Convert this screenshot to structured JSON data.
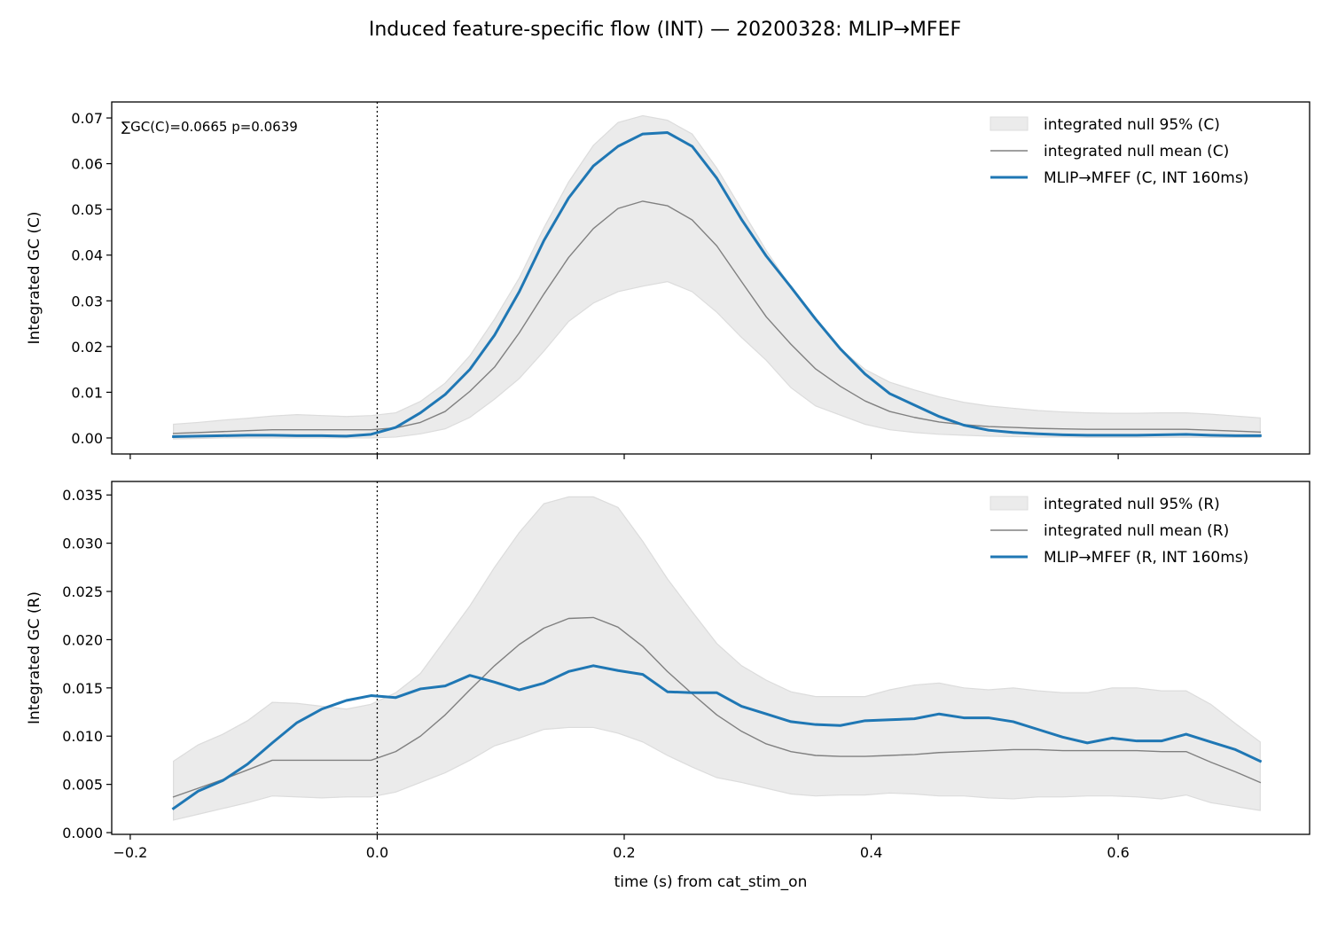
{
  "figure_title": "Induced feature-specific flow (INT) — 20200328: MLIP→MFEF",
  "colors": {
    "series": "#1f77b4",
    "null_mean": "#808080",
    "null_band": "#ebebeb",
    "null_band_edge": "#dcdcdc"
  },
  "chart_data": [
    {
      "type": "line",
      "id": "C",
      "ylabel": "Integrated GC (C)",
      "xlabel": "",
      "annotation": "∑GC(C)=0.0665  p=0.0639",
      "xlim": [
        -0.215,
        0.755
      ],
      "ylim": [
        -0.0035,
        0.0735
      ],
      "xticks": [
        -0.2,
        0.0,
        0.2,
        0.4,
        0.6
      ],
      "xtick_labels": [
        "",
        "",
        "",
        "",
        ""
      ],
      "yticks": [
        0.0,
        0.01,
        0.02,
        0.03,
        0.04,
        0.05,
        0.06,
        0.07
      ],
      "ytick_labels": [
        "0.00",
        "0.01",
        "0.02",
        "0.03",
        "0.04",
        "0.05",
        "0.06",
        "0.07"
      ],
      "vline_x": 0.0,
      "legend_position": "top-right",
      "legend": [
        "integrated null 95% (C)",
        "integrated null mean (C)",
        "MLIP→MFEF (C, INT 160ms)"
      ],
      "x": [
        -0.165,
        -0.145,
        -0.125,
        -0.105,
        -0.085,
        -0.065,
        -0.045,
        -0.025,
        -0.005,
        0.015,
        0.035,
        0.055,
        0.075,
        0.095,
        0.115,
        0.135,
        0.155,
        0.175,
        0.195,
        0.215,
        0.235,
        0.255,
        0.275,
        0.295,
        0.315,
        0.335,
        0.355,
        0.375,
        0.395,
        0.415,
        0.435,
        0.455,
        0.475,
        0.495,
        0.515,
        0.535,
        0.555,
        0.575,
        0.595,
        0.615,
        0.635,
        0.655,
        0.675,
        0.695,
        0.715
      ],
      "band_upper": [
        0.003,
        0.0034,
        0.0039,
        0.0043,
        0.0048,
        0.0051,
        0.0049,
        0.0047,
        0.0049,
        0.0055,
        0.008,
        0.012,
        0.018,
        0.026,
        0.035,
        0.046,
        0.056,
        0.064,
        0.069,
        0.0705,
        0.0695,
        0.0665,
        0.059,
        0.05,
        0.041,
        0.033,
        0.026,
        0.0195,
        0.015,
        0.0122,
        0.0105,
        0.009,
        0.0078,
        0.007,
        0.0065,
        0.006,
        0.0057,
        0.0055,
        0.0054,
        0.0054,
        0.0055,
        0.0055,
        0.0052,
        0.0048,
        0.0044
      ],
      "band_lower": [
        -0.0002,
        -0.0001,
        0.0,
        0.0,
        0.0,
        0.0,
        0.0,
        0.0,
        0.0,
        0.0002,
        0.0009,
        0.002,
        0.0045,
        0.0085,
        0.013,
        0.019,
        0.0255,
        0.0295,
        0.032,
        0.0332,
        0.0342,
        0.032,
        0.0275,
        0.022,
        0.017,
        0.011,
        0.007,
        0.005,
        0.003,
        0.0018,
        0.0012,
        0.0008,
        0.0006,
        0.0004,
        0.0003,
        0.0002,
        0.0002,
        0.0001,
        0.0001,
        0.0001,
        0.0001,
        0.0001,
        0.0001,
        0.0001,
        0.0001
      ],
      "series": [
        {
          "name": "integrated null mean (C)",
          "role": "null_mean",
          "values": [
            0.001,
            0.0012,
            0.0014,
            0.0016,
            0.0018,
            0.0018,
            0.0018,
            0.0018,
            0.0018,
            0.0022,
            0.0034,
            0.0058,
            0.0102,
            0.0155,
            0.023,
            0.0315,
            0.0395,
            0.0458,
            0.0502,
            0.0518,
            0.0508,
            0.0477,
            0.042,
            0.0342,
            0.0265,
            0.0205,
            0.0151,
            0.0113,
            0.0081,
            0.0058,
            0.0045,
            0.0035,
            0.0029,
            0.0025,
            0.0023,
            0.0021,
            0.002,
            0.0019,
            0.0019,
            0.0019,
            0.0019,
            0.0019,
            0.0017,
            0.0015,
            0.0013
          ]
        },
        {
          "name": "MLIP→MFEF (C, INT 160ms)",
          "role": "main",
          "values": [
            0.0003,
            0.0004,
            0.0005,
            0.0006,
            0.0006,
            0.0005,
            0.0005,
            0.0004,
            0.0008,
            0.0023,
            0.0055,
            0.0095,
            0.015,
            0.0225,
            0.032,
            0.0432,
            0.0525,
            0.0595,
            0.0638,
            0.0665,
            0.0668,
            0.0638,
            0.0568,
            0.0478,
            0.0398,
            0.033,
            0.026,
            0.0195,
            0.014,
            0.0097,
            0.0072,
            0.0047,
            0.0028,
            0.0017,
            0.0012,
            0.0009,
            0.0007,
            0.0006,
            0.0006,
            0.0006,
            0.0007,
            0.0008,
            0.0006,
            0.0005,
            0.0005
          ]
        }
      ]
    },
    {
      "type": "line",
      "id": "R",
      "ylabel": "Integrated GC (R)",
      "xlabel": "time (s) from cat_stim_on",
      "xlim": [
        -0.215,
        0.755
      ],
      "ylim": [
        -0.00018,
        0.0364
      ],
      "xticks": [
        -0.2,
        0.0,
        0.2,
        0.4,
        0.6
      ],
      "xtick_labels": [
        "−0.2",
        "0.0",
        "0.2",
        "0.4",
        "0.6"
      ],
      "yticks": [
        0.0,
        0.005,
        0.01,
        0.015,
        0.02,
        0.025,
        0.03,
        0.035
      ],
      "ytick_labels": [
        "0.000",
        "0.005",
        "0.010",
        "0.015",
        "0.020",
        "0.025",
        "0.030",
        "0.035"
      ],
      "vline_x": 0.0,
      "legend_position": "top-right",
      "legend": [
        "integrated null 95% (R)",
        "integrated null mean (R)",
        "MLIP→MFEF (R, INT 160ms)"
      ],
      "x": [
        -0.165,
        -0.145,
        -0.125,
        -0.105,
        -0.085,
        -0.065,
        -0.045,
        -0.025,
        -0.005,
        0.015,
        0.035,
        0.055,
        0.075,
        0.095,
        0.115,
        0.135,
        0.155,
        0.175,
        0.195,
        0.215,
        0.235,
        0.255,
        0.275,
        0.295,
        0.315,
        0.335,
        0.355,
        0.375,
        0.395,
        0.415,
        0.435,
        0.455,
        0.475,
        0.495,
        0.515,
        0.535,
        0.555,
        0.575,
        0.595,
        0.615,
        0.635,
        0.655,
        0.675,
        0.695,
        0.715
      ],
      "band_upper": [
        0.0074,
        0.0091,
        0.0102,
        0.0116,
        0.0135,
        0.0134,
        0.0131,
        0.0128,
        0.0133,
        0.0145,
        0.0165,
        0.02,
        0.0235,
        0.0275,
        0.0311,
        0.0341,
        0.0348,
        0.0348,
        0.0337,
        0.0302,
        0.0263,
        0.0229,
        0.0196,
        0.0173,
        0.0158,
        0.0146,
        0.0141,
        0.0141,
        0.0141,
        0.0148,
        0.0153,
        0.0155,
        0.015,
        0.0148,
        0.015,
        0.0147,
        0.0145,
        0.0145,
        0.015,
        0.015,
        0.0147,
        0.0147,
        0.0133,
        0.0113,
        0.0094
      ],
      "band_lower": [
        0.0013,
        0.0019,
        0.0025,
        0.0031,
        0.0038,
        0.0037,
        0.0036,
        0.0037,
        0.0037,
        0.0042,
        0.0052,
        0.0062,
        0.0075,
        0.009,
        0.0098,
        0.0107,
        0.0109,
        0.0109,
        0.0103,
        0.0094,
        0.008,
        0.0068,
        0.0057,
        0.0052,
        0.0046,
        0.004,
        0.0038,
        0.0039,
        0.0039,
        0.0041,
        0.004,
        0.0038,
        0.0038,
        0.0036,
        0.0035,
        0.0037,
        0.0037,
        0.0038,
        0.0038,
        0.0037,
        0.0035,
        0.0039,
        0.0031,
        0.0027,
        0.0023
      ],
      "series": [
        {
          "name": "integrated null mean (R)",
          "role": "null_mean",
          "values": [
            0.0037,
            0.0046,
            0.0055,
            0.0065,
            0.0075,
            0.0075,
            0.0075,
            0.0075,
            0.0075,
            0.0084,
            0.01,
            0.0122,
            0.0148,
            0.0173,
            0.0195,
            0.0212,
            0.0222,
            0.0223,
            0.0213,
            0.0193,
            0.0167,
            0.0144,
            0.0122,
            0.0105,
            0.0092,
            0.0084,
            0.008,
            0.0079,
            0.0079,
            0.008,
            0.0081,
            0.0083,
            0.0084,
            0.0085,
            0.0086,
            0.0086,
            0.0085,
            0.0085,
            0.0085,
            0.0085,
            0.0084,
            0.0084,
            0.0073,
            0.0063,
            0.0052
          ]
        },
        {
          "name": "MLIP→MFEF (R, INT 160ms)",
          "role": "main",
          "values": [
            0.0025,
            0.0043,
            0.0054,
            0.0071,
            0.0093,
            0.0114,
            0.0128,
            0.0137,
            0.0142,
            0.014,
            0.0149,
            0.0152,
            0.0163,
            0.0156,
            0.0148,
            0.0155,
            0.0167,
            0.0173,
            0.0168,
            0.0164,
            0.0146,
            0.0145,
            0.0145,
            0.0131,
            0.0123,
            0.0115,
            0.0112,
            0.0111,
            0.0116,
            0.0117,
            0.0118,
            0.0123,
            0.0119,
            0.0119,
            0.0115,
            0.0107,
            0.0099,
            0.0093,
            0.0098,
            0.0095,
            0.0095,
            0.0102,
            0.0094,
            0.0086,
            0.0074
          ]
        }
      ]
    }
  ]
}
